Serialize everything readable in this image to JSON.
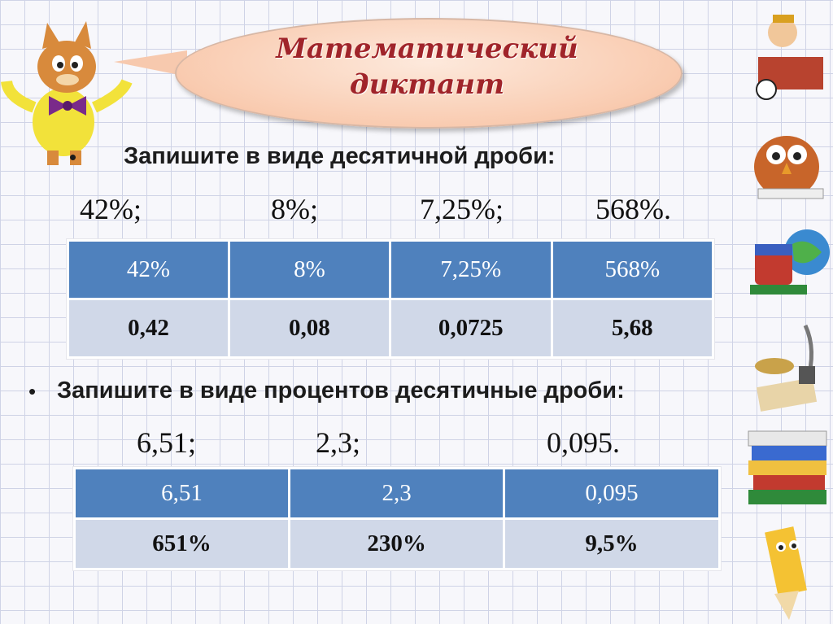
{
  "title": {
    "line1": "Математический",
    "line2": "диктант"
  },
  "task1": {
    "bullet": "•",
    "text": "Запишите в виде десятичной дроби:",
    "values": [
      "42%;",
      "8%;",
      "7,25%;",
      "568%."
    ],
    "table": {
      "header": [
        "42%",
        "8%",
        "7,25%",
        "568%"
      ],
      "answers": [
        "0,42",
        "0,08",
        "0,0725",
        "5,68"
      ]
    }
  },
  "task2": {
    "bullet": "•",
    "text": "Запишите в виде процентов десятичные дроби:",
    "values": [
      "6,51;",
      "2,3;",
      "0,095."
    ],
    "table": {
      "header": [
        "6,51",
        "2,3",
        "0,095"
      ],
      "answers": [
        "651%",
        "230%",
        "9,5%"
      ]
    }
  },
  "colors": {
    "title": "#a0242a",
    "table_header": "#4f81bd",
    "table_body": "#d0d8e8",
    "bubble": "#f9cbb0"
  }
}
